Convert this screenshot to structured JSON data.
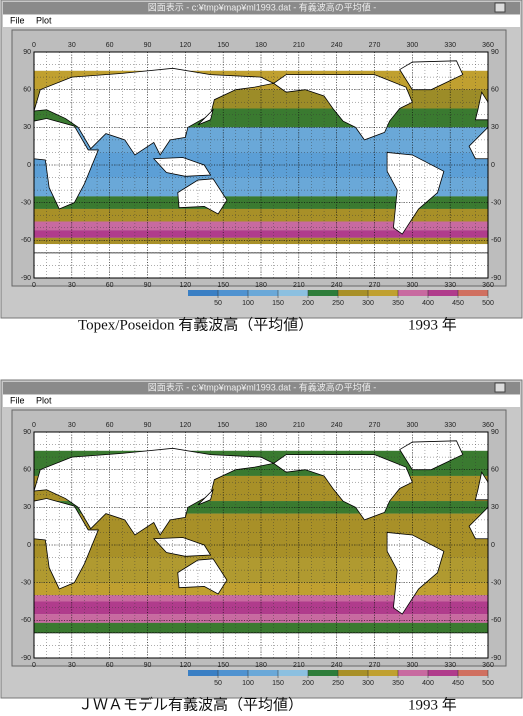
{
  "windows": [
    {
      "title": "図面表示 - c:¥tmp¥map¥ml1993.dat - 有義波高の平均値 -",
      "menu": [
        "File",
        "Plot"
      ],
      "map": {
        "xticks": [
          0,
          30,
          60,
          90,
          120,
          150,
          180,
          210,
          240,
          270,
          300,
          330,
          360
        ],
        "yticks": [
          90,
          60,
          30,
          0,
          -30,
          -60,
          -90
        ],
        "colorbar_ticks": [
          50,
          100,
          150,
          200,
          250,
          300,
          350,
          400,
          450,
          500
        ]
      },
      "caption": "Topex/Poseidon 有義波高（平均値）",
      "year": "1993 年"
    },
    {
      "title": "図面表示 - c:¥tmp¥map¥ml1993.dat - 有義波高の平均値 -",
      "menu": [
        "File",
        "Plot"
      ],
      "map": {
        "xticks": [
          0,
          30,
          60,
          90,
          120,
          150,
          180,
          210,
          240,
          270,
          300,
          330,
          360
        ],
        "yticks": [
          90,
          60,
          30,
          0,
          -30,
          -60,
          -90
        ],
        "colorbar_ticks": [
          50,
          100,
          150,
          200,
          250,
          300,
          350,
          400,
          450,
          500
        ]
      },
      "caption": "ＪＷＡモデル有義波高（平均値）",
      "year": "1993 年"
    }
  ]
}
